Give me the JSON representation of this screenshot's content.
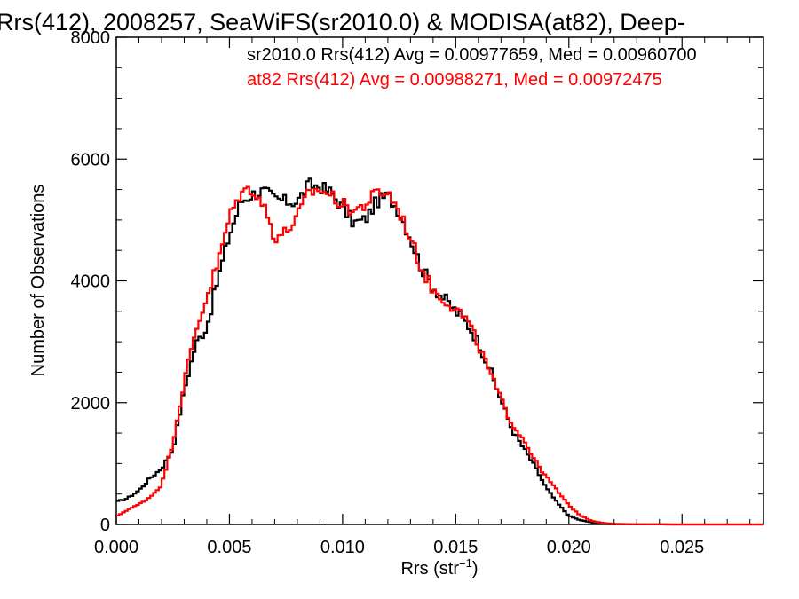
{
  "chart_data": {
    "type": "line",
    "title": "Rrs(412), 2008257, SeaWiFS(sr2010.0) & MODISA(at82), Deep-",
    "xlabel": "Rrs (str",
    "xlabel_sup": "−1",
    "xlabel_close": ")",
    "ylabel": "Number of Observations",
    "xlim": [
      0.0,
      0.0286
    ],
    "ylim": [
      0,
      8000
    ],
    "xticks": [
      0.0,
      0.005,
      0.01,
      0.015,
      0.02,
      0.025
    ],
    "xtick_labels": [
      "0.000",
      "0.005",
      "0.010",
      "0.015",
      "0.020",
      "0.025"
    ],
    "yticks": [
      0,
      2000,
      4000,
      6000,
      8000
    ],
    "ytick_labels": [
      "0",
      "2000",
      "4000",
      "6000",
      "8000"
    ],
    "grid": false,
    "annotations": [
      {
        "text": "sr2010.0 Rrs(412) Avg = 0.00977659, Med = 0.00960700",
        "color": "#000000"
      },
      {
        "text": "at82 Rrs(412) Avg = 0.00988271, Med = 0.00972475",
        "color": "#ff0000"
      }
    ],
    "series": [
      {
        "color": "#000000",
        "points": [
          [
            0.0,
            370
          ],
          [
            0.0005,
            430
          ],
          [
            0.001,
            560
          ],
          [
            0.0015,
            760
          ],
          [
            0.002,
            920
          ],
          [
            0.0025,
            1230
          ],
          [
            0.003,
            2200
          ],
          [
            0.0035,
            2950
          ],
          [
            0.004,
            3250
          ],
          [
            0.0045,
            4050
          ],
          [
            0.005,
            4750
          ],
          [
            0.0055,
            5300
          ],
          [
            0.006,
            5420
          ],
          [
            0.0065,
            5480
          ],
          [
            0.007,
            5350
          ],
          [
            0.0075,
            5300
          ],
          [
            0.008,
            5300
          ],
          [
            0.0085,
            5580
          ],
          [
            0.009,
            5550
          ],
          [
            0.0095,
            5450
          ],
          [
            0.01,
            5200
          ],
          [
            0.0105,
            4950
          ],
          [
            0.011,
            5000
          ],
          [
            0.0115,
            5300
          ],
          [
            0.012,
            5400
          ],
          [
            0.0125,
            5150
          ],
          [
            0.013,
            4700
          ],
          [
            0.0135,
            4200
          ],
          [
            0.014,
            3900
          ],
          [
            0.0145,
            3700
          ],
          [
            0.015,
            3500
          ],
          [
            0.0155,
            3300
          ],
          [
            0.016,
            3000
          ],
          [
            0.0165,
            2550
          ],
          [
            0.017,
            2050
          ],
          [
            0.0175,
            1550
          ],
          [
            0.018,
            1250
          ],
          [
            0.0185,
            950
          ],
          [
            0.019,
            600
          ],
          [
            0.0195,
            350
          ],
          [
            0.02,
            140
          ],
          [
            0.0205,
            70
          ],
          [
            0.021,
            35
          ],
          [
            0.0215,
            15
          ],
          [
            0.022,
            6
          ],
          [
            0.023,
            2
          ],
          [
            0.025,
            0
          ],
          [
            0.0286,
            0
          ]
        ]
      },
      {
        "color": "#ff0000",
        "points": [
          [
            0.0,
            130
          ],
          [
            0.0005,
            240
          ],
          [
            0.001,
            330
          ],
          [
            0.0015,
            450
          ],
          [
            0.002,
            650
          ],
          [
            0.0025,
            1350
          ],
          [
            0.003,
            2350
          ],
          [
            0.0035,
            3150
          ],
          [
            0.004,
            3750
          ],
          [
            0.0045,
            4300
          ],
          [
            0.005,
            5050
          ],
          [
            0.0055,
            5450
          ],
          [
            0.006,
            5520
          ],
          [
            0.0065,
            5250
          ],
          [
            0.007,
            4720
          ],
          [
            0.0075,
            4800
          ],
          [
            0.008,
            5050
          ],
          [
            0.0085,
            5450
          ],
          [
            0.009,
            5500
          ],
          [
            0.0095,
            5400
          ],
          [
            0.01,
            5250
          ],
          [
            0.0105,
            5150
          ],
          [
            0.011,
            5250
          ],
          [
            0.0115,
            5450
          ],
          [
            0.012,
            5450
          ],
          [
            0.0125,
            5150
          ],
          [
            0.013,
            4700
          ],
          [
            0.0135,
            4200
          ],
          [
            0.014,
            3850
          ],
          [
            0.0145,
            3700
          ],
          [
            0.015,
            3550
          ],
          [
            0.0155,
            3350
          ],
          [
            0.016,
            2950
          ],
          [
            0.0165,
            2500
          ],
          [
            0.017,
            2050
          ],
          [
            0.0175,
            1650
          ],
          [
            0.018,
            1400
          ],
          [
            0.0185,
            1050
          ],
          [
            0.019,
            780
          ],
          [
            0.0195,
            550
          ],
          [
            0.02,
            310
          ],
          [
            0.0205,
            150
          ],
          [
            0.021,
            60
          ],
          [
            0.0215,
            25
          ],
          [
            0.022,
            10
          ],
          [
            0.023,
            3
          ],
          [
            0.025,
            0
          ],
          [
            0.0286,
            0
          ]
        ]
      }
    ]
  }
}
